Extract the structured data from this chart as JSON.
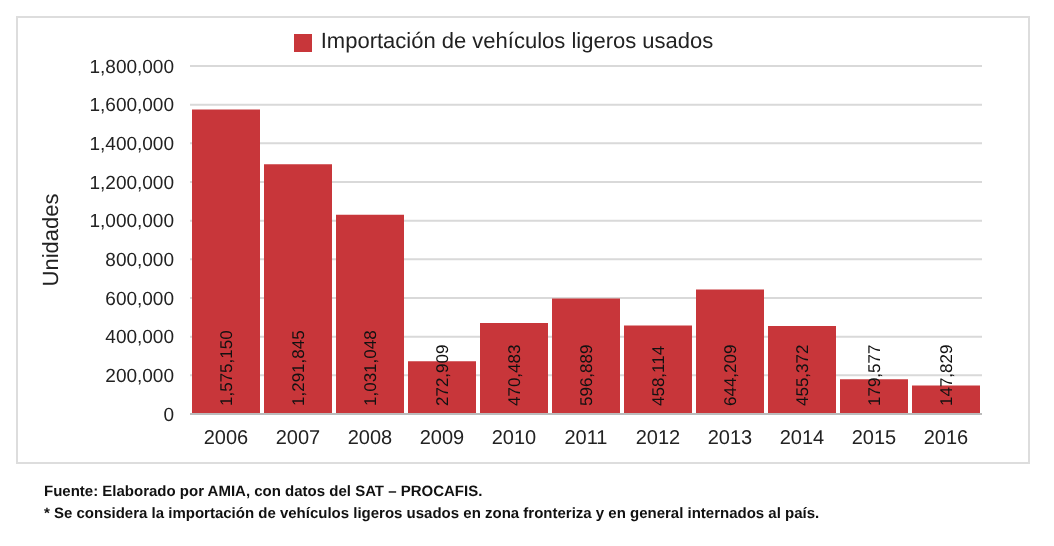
{
  "chart_data": {
    "type": "bar",
    "ylabel": "Unidades",
    "categories": [
      "2006",
      "2007",
      "2008",
      "2009",
      "2010",
      "2011",
      "2012",
      "2013",
      "2014",
      "2015",
      "2016"
    ],
    "series": [
      {
        "name": "Importación de vehículos ligeros usados",
        "color": "#c8363a",
        "values": [
          1575150,
          1291845,
          1031048,
          272909,
          470483,
          596889,
          458114,
          644209,
          455372,
          179577,
          147829
        ],
        "value_labels": [
          "1,575,150",
          "1,291,845",
          "1,031,048",
          "272,909",
          "470,483",
          "596,889",
          "458,114",
          "644,209",
          "455,372",
          "179,577",
          "147,829"
        ]
      }
    ],
    "ylim": [
      0,
      1800000
    ],
    "yticks": [
      {
        "value": 0,
        "label": "0"
      },
      {
        "value": 200000,
        "label": "200,000"
      },
      {
        "value": 400000,
        "label": "400,000"
      },
      {
        "value": 600000,
        "label": "600,000"
      },
      {
        "value": 800000,
        "label": "800,000"
      },
      {
        "value": 1000000,
        "label": "1,000,000"
      },
      {
        "value": 1200000,
        "label": "1,200,000"
      },
      {
        "value": 1400000,
        "label": "1,400,000"
      },
      {
        "value": 1600000,
        "label": "1,600,000"
      },
      {
        "value": 1800000,
        "label": "1,800,000"
      }
    ],
    "grid": "y",
    "legend": "top",
    "annotations": [
      "Fuente: Elaborado por AMIA, con datos del SAT – PROCAFIS.",
      "* Se considera la importación de vehículos ligeros usados en zona fronteriza y en general internados al país."
    ]
  }
}
